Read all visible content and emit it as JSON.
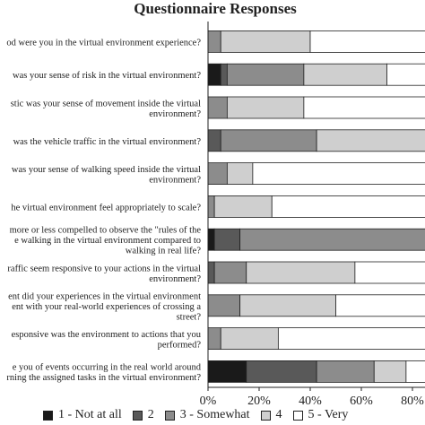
{
  "chart_data": {
    "type": "bar",
    "orientation": "horizontal",
    "stacked": true,
    "title": "Questionnaire Responses",
    "categories": [
      "od were you in the virtual environment experience?",
      "was your sense of risk in the virtual environment?",
      "stic was your sense of movement inside the virtual environment?",
      "was the vehicle traffic in the virtual environment?",
      "was your sense of walking speed inside the virtual environment?",
      "he virtual environment feel appropriately to scale?",
      "more or less compelled to observe the \"rules of the e walking in the virtual environment compared to walking in real life?",
      "raffic seem responsive to your actions in the virtual environment?",
      "ent did your experiences in the virtual environment ent with your real-world experiences of crossing a street?",
      "esponsive was the environment to actions that you performed?",
      "e you of events occurring in the real world around rning the assigned tasks in the virtual environment?"
    ],
    "category_lines": [
      [
        "od were you in the virtual environment experience?"
      ],
      [
        "was your sense of risk in the virtual environment?"
      ],
      [
        "stic was your sense of movement inside the virtual",
        "environment?"
      ],
      [
        "was the vehicle traffic in the virtual environment?"
      ],
      [
        "was your sense of walking speed inside the virtual",
        "environment?"
      ],
      [
        "he virtual environment feel appropriately to scale?"
      ],
      [
        "more or less compelled to observe the \"rules of the",
        "e walking in the virtual environment compared to",
        "walking in real life?"
      ],
      [
        "raffic seem responsive to your actions in the virtual",
        "environment?"
      ],
      [
        "ent did your experiences in the virtual environment",
        "ent with your real-world experiences of crossing a",
        "street?"
      ],
      [
        "esponsive was the environment to actions that you",
        "performed?"
      ],
      [
        "e you of events occurring in the real world around",
        "rning the assigned tasks in the virtual environment?"
      ]
    ],
    "series": [
      {
        "name": "1 - Not at all",
        "color": "#1a1a1a",
        "values": [
          0,
          5,
          0,
          0,
          0,
          0,
          2.5,
          0,
          0,
          0,
          15
        ]
      },
      {
        "name": "2",
        "color": "#595959",
        "values": [
          0,
          2.5,
          0,
          5,
          0,
          0,
          10,
          2.5,
          0,
          0,
          27.5
        ]
      },
      {
        "name": "3 - Somewhat",
        "color": "#8c8c8c",
        "values": [
          5,
          30,
          7.5,
          37.5,
          7.5,
          2.5,
          87.5,
          12.5,
          12.5,
          5,
          22.5
        ]
      },
      {
        "name": "4",
        "color": "#cfcfcf",
        "values": [
          35,
          32.5,
          30,
          57.5,
          10,
          22.5,
          0,
          42.5,
          37.5,
          22.5,
          12.5
        ]
      },
      {
        "name": "5 - Very",
        "color": "#ffffff",
        "values": [
          60,
          30,
          62.5,
          0,
          82.5,
          75,
          0,
          42.5,
          50,
          72.5,
          22.5
        ]
      }
    ],
    "x_ticks": [
      "0%",
      "20%",
      "40%",
      "60%",
      "80%"
    ],
    "xlim": [
      0,
      100
    ],
    "grid": false,
    "legend_position": "bottom"
  }
}
